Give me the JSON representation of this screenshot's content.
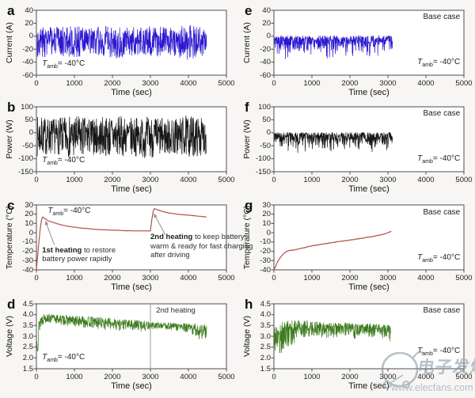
{
  "figure": {
    "background": "#f7f6f4",
    "watermark": {
      "site_name": "电子发烧友",
      "site_url": "www.elecfans.com",
      "color": "#7d929c"
    }
  },
  "chart_data": [
    {
      "panel": "a",
      "row": 0,
      "col": 0,
      "type": "line",
      "xlabel": "Time (sec)",
      "ylabel": "Current (A)",
      "xlim": [
        0,
        5000
      ],
      "ylim": [
        -60,
        40
      ],
      "xticks": [
        0,
        1000,
        2000,
        3000,
        4000,
        5000
      ],
      "xtick_labels": [
        "0",
        "1000",
        "2000",
        "3000",
        "4000",
        "5000"
      ],
      "yticks": [
        40,
        20,
        0,
        -20,
        -40,
        -60
      ],
      "ytick_labels": [
        "40",
        "20",
        "0",
        "-20",
        "-40",
        "-60"
      ],
      "color": "#2a17d0",
      "series": {
        "kind": "noise",
        "seed": 3,
        "t_start": 20,
        "t_end": 4480,
        "dt": 6,
        "skew": 1,
        "envelope": {
          "t": [
            0,
            500,
            1000,
            1500,
            2000,
            2500,
            3000,
            3500,
            4000,
            4480
          ],
          "upper": [
            18,
            14,
            16,
            14,
            17,
            14,
            16,
            14,
            18,
            13
          ],
          "lower": [
            -34,
            -29,
            -33,
            -29,
            -36,
            -30,
            -33,
            -29,
            -37,
            -29
          ]
        }
      },
      "annotations": [
        {
          "name": "tamb-label",
          "cls": "tamb",
          "fx": 0.03,
          "fy": 0.76,
          "align": "left",
          "parts": {
            "pre": "T",
            "sub": "amb",
            "post": "= -40°C"
          }
        }
      ]
    },
    {
      "panel": "b",
      "row": 1,
      "col": 0,
      "type": "line",
      "xlabel": "Time (sec)",
      "ylabel": "Power (W)",
      "xlim": [
        0,
        5000
      ],
      "ylim": [
        -150,
        100
      ],
      "xticks": [
        0,
        1000,
        2000,
        3000,
        4000,
        5000
      ],
      "xtick_labels": [
        "0",
        "1000",
        "2000",
        "3000",
        "4000",
        "5000"
      ],
      "yticks": [
        100,
        50,
        0,
        -50,
        -100,
        -150
      ],
      "ytick_labels": [
        "100",
        "50",
        "0",
        "-50",
        "-100",
        "-150"
      ],
      "color": "#161616",
      "series": {
        "kind": "noise",
        "seed": 7,
        "t_start": 20,
        "t_end": 4480,
        "dt": 6,
        "skew": 1,
        "envelope": {
          "t": [
            0,
            500,
            1000,
            1500,
            2000,
            2500,
            3000,
            3500,
            4000,
            4480
          ],
          "upper": [
            65,
            55,
            68,
            55,
            70,
            58,
            65,
            55,
            68,
            55
          ],
          "lower": [
            -92,
            -82,
            -100,
            -85,
            -96,
            -88,
            -100,
            -85,
            -96,
            -85
          ]
        }
      },
      "annotations": [
        {
          "name": "tamb-label",
          "cls": "tamb",
          "fx": 0.03,
          "fy": 0.76,
          "align": "left",
          "parts": {
            "pre": "T",
            "sub": "amb",
            "post": "= -40°C"
          }
        }
      ]
    },
    {
      "panel": "c",
      "row": 2,
      "col": 0,
      "type": "line",
      "xlabel": "Time (sec)",
      "ylabel": "Temperature (°C)",
      "xlim": [
        0,
        5000
      ],
      "ylim": [
        -40,
        30
      ],
      "xticks": [
        0,
        1000,
        2000,
        3000,
        4000,
        5000
      ],
      "xtick_labels": [
        "0",
        "1000",
        "2000",
        "3000",
        "4000",
        "5000"
      ],
      "yticks": [
        30,
        20,
        10,
        0,
        -10,
        -20,
        -30,
        -40
      ],
      "ytick_labels": [
        "30",
        "20",
        "10",
        "0",
        "-10",
        "-20",
        "-30",
        "-40"
      ],
      "color": "#b0524c",
      "series": {
        "kind": "points",
        "wiggle": 0.25,
        "points": [
          [
            0,
            -40
          ],
          [
            30,
            -26
          ],
          [
            60,
            -12
          ],
          [
            100,
            4
          ],
          [
            130,
            13
          ],
          [
            160,
            17
          ],
          [
            200,
            16
          ],
          [
            300,
            13
          ],
          [
            450,
            11
          ],
          [
            650,
            8.5
          ],
          [
            900,
            6.5
          ],
          [
            1200,
            5
          ],
          [
            1600,
            3.5
          ],
          [
            2000,
            2.8
          ],
          [
            2400,
            2.2
          ],
          [
            2800,
            2
          ],
          [
            3000,
            2
          ],
          [
            3030,
            12
          ],
          [
            3070,
            23
          ],
          [
            3100,
            26
          ],
          [
            3200,
            24.5
          ],
          [
            3400,
            22
          ],
          [
            3700,
            20
          ],
          [
            4000,
            19
          ],
          [
            4250,
            18
          ],
          [
            4480,
            17
          ]
        ]
      },
      "arrows": [
        {
          "from": [
            470,
            -13
          ],
          "to": [
            235,
            13
          ]
        },
        {
          "from": [
            3390,
            -2
          ],
          "to": [
            3085,
            21
          ]
        }
      ],
      "annotations": [
        {
          "name": "tamb-label",
          "cls": "tamb",
          "fx": 0.06,
          "fy": 0.02,
          "align": "left",
          "parts": {
            "pre": "T",
            "sub": "amb",
            "post": "= -40°C"
          }
        },
        {
          "name": "first-heating-note",
          "fx": 0.03,
          "fy": 0.63,
          "w": 122,
          "align": "left",
          "parts": {
            "bold": "1st heating",
            "rest": " to restore battery power rapidly"
          }
        },
        {
          "name": "second-heating-note",
          "fx": 0.6,
          "fy": 0.43,
          "w": 130,
          "align": "left",
          "parts": {
            "bold": "2nd heating",
            "rest": " to keep battery warm & ready for fast charging after driving"
          }
        }
      ]
    },
    {
      "panel": "d",
      "row": 3,
      "col": 0,
      "type": "line",
      "xlabel": "Time (sec)",
      "ylabel": "Voltage (V)",
      "xlim": [
        0,
        5000
      ],
      "ylim": [
        1.5,
        4.5
      ],
      "xticks": [
        0,
        1000,
        2000,
        3000,
        4000,
        5000
      ],
      "xtick_labels": [
        "0",
        "1000",
        "2000",
        "3000",
        "4000",
        "5000"
      ],
      "yticks": [
        4.5,
        4.0,
        3.5,
        3.0,
        2.5,
        2.0,
        1.5
      ],
      "ytick_labels": [
        "4.5",
        "4.0",
        "3.5",
        "3.0",
        "2.5",
        "2.0",
        "1.5"
      ],
      "color": "#3e7c1e",
      "vline": {
        "x": 3000,
        "color": "#9a9a9a"
      },
      "series": {
        "kind": "noise",
        "seed": 13,
        "t_start": 10,
        "t_end": 4480,
        "dt": 6,
        "skew": 0.7,
        "envelope": {
          "t": [
            0,
            40,
            100,
            200,
            600,
            1000,
            1600,
            2200,
            2800,
            3000,
            3400,
            3900,
            4200,
            4480
          ],
          "upper": [
            3.0,
            3.6,
            4.05,
            4.05,
            4.0,
            3.95,
            3.9,
            3.8,
            3.75,
            3.65,
            3.65,
            3.6,
            3.6,
            3.55
          ],
          "lower": [
            1.9,
            2.3,
            3.2,
            3.6,
            3.5,
            3.4,
            3.3,
            3.25,
            3.2,
            3.3,
            3.3,
            3.15,
            2.85,
            2.8
          ]
        }
      },
      "annotations": [
        {
          "name": "tamb-label",
          "cls": "tamb",
          "fx": 0.03,
          "fy": 0.76,
          "align": "left",
          "parts": {
            "pre": "T",
            "sub": "amb",
            "post": "= -40°C"
          }
        },
        {
          "name": "second-heating-label",
          "fx": 0.63,
          "fy": 0.04,
          "align": "left",
          "parts": {
            "text": "2nd heating"
          }
        }
      ]
    },
    {
      "panel": "e",
      "row": 0,
      "col": 1,
      "type": "line",
      "xlabel": "Time (sec)",
      "ylabel": "Current (A)",
      "xlim": [
        0,
        5000
      ],
      "ylim": [
        -60,
        40
      ],
      "xticks": [
        0,
        1000,
        2000,
        3000,
        4000,
        5000
      ],
      "xtick_labels": [
        "0",
        "1000",
        "2000",
        "3000",
        "4000",
        "5000"
      ],
      "yticks": [
        40,
        20,
        0,
        -20,
        -40,
        -60
      ],
      "ytick_labels": [
        "40",
        "20",
        "0",
        "-20",
        "-40",
        "-60"
      ],
      "color": "#2a17d0",
      "series": {
        "kind": "noise",
        "seed": 5,
        "t_start": 10,
        "t_end": 3120,
        "dt": 6,
        "skew": 0.32,
        "envelope": {
          "t": [
            0,
            300,
            600,
            1000,
            1500,
            2000,
            2500,
            3120
          ],
          "upper": [
            1,
            1,
            1,
            1,
            1,
            1,
            1,
            1
          ],
          "lower": [
            -32,
            -45,
            -38,
            -34,
            -40,
            -36,
            -42,
            -34
          ]
        }
      },
      "annotations": [
        {
          "name": "base-case-label",
          "cls": "base",
          "fx": 0.98,
          "fy": 0.04,
          "align": "right",
          "parts": {
            "text": "Base case"
          }
        },
        {
          "name": "tamb-label",
          "cls": "tamb",
          "fx": 0.98,
          "fy": 0.73,
          "align": "right",
          "parts": {
            "pre": "T",
            "sub": "amb",
            "post": "= -40°C"
          }
        }
      ]
    },
    {
      "panel": "f",
      "row": 1,
      "col": 1,
      "type": "line",
      "xlabel": "Time (sec)",
      "ylabel": "Power (W)",
      "xlim": [
        0,
        5000
      ],
      "ylim": [
        -150,
        100
      ],
      "xticks": [
        0,
        1000,
        2000,
        3000,
        4000,
        5000
      ],
      "xtick_labels": [
        "0",
        "1000",
        "2000",
        "3000",
        "4000",
        "5000"
      ],
      "yticks": [
        100,
        50,
        0,
        -50,
        -100,
        -150
      ],
      "ytick_labels": [
        "100",
        "50",
        "0",
        "-50",
        "-100",
        "-150"
      ],
      "color": "#161616",
      "series": {
        "kind": "noise",
        "seed": 9,
        "t_start": 10,
        "t_end": 3120,
        "dt": 6,
        "skew": 0.32,
        "envelope": {
          "t": [
            0,
            300,
            600,
            1000,
            1500,
            2000,
            2500,
            3120
          ],
          "upper": [
            2,
            2,
            2,
            2,
            2,
            2,
            2,
            2
          ],
          "lower": [
            -70,
            -102,
            -92,
            -88,
            -100,
            -90,
            -102,
            -92
          ]
        }
      },
      "annotations": [
        {
          "name": "base-case-label",
          "cls": "base",
          "fx": 0.98,
          "fy": 0.04,
          "align": "right",
          "parts": {
            "text": "Base case"
          }
        },
        {
          "name": "tamb-label",
          "cls": "tamb",
          "fx": 0.98,
          "fy": 0.73,
          "align": "right",
          "parts": {
            "pre": "T",
            "sub": "amb",
            "post": "= -40°C"
          }
        }
      ]
    },
    {
      "panel": "g",
      "row": 2,
      "col": 1,
      "type": "line",
      "xlabel": "Time (sec)",
      "ylabel": "Temperature (°C)",
      "xlim": [
        0,
        5000
      ],
      "ylim": [
        -40,
        30
      ],
      "xticks": [
        0,
        1000,
        2000,
        3000,
        4000,
        5000
      ],
      "xtick_labels": [
        "0",
        "1000",
        "2000",
        "3000",
        "4000",
        "5000"
      ],
      "yticks": [
        30,
        20,
        10,
        0,
        -10,
        -20,
        -30,
        -40
      ],
      "ytick_labels": [
        "30",
        "20",
        "10",
        "0",
        "-10",
        "-20",
        "-30",
        "-40"
      ],
      "color": "#b0524c",
      "series": {
        "kind": "points",
        "wiggle": 0.5,
        "points": [
          [
            0,
            -40
          ],
          [
            50,
            -36
          ],
          [
            100,
            -31
          ],
          [
            200,
            -25
          ],
          [
            300,
            -21
          ],
          [
            400,
            -19
          ],
          [
            550,
            -18.5
          ],
          [
            700,
            -17
          ],
          [
            900,
            -15
          ],
          [
            1100,
            -13.5
          ],
          [
            1400,
            -11.5
          ],
          [
            1700,
            -9.5
          ],
          [
            2000,
            -8
          ],
          [
            2300,
            -6
          ],
          [
            2600,
            -4
          ],
          [
            2900,
            -1.5
          ],
          [
            3100,
            1.5
          ]
        ]
      },
      "annotations": [
        {
          "name": "base-case-label",
          "cls": "base",
          "fx": 0.98,
          "fy": 0.05,
          "align": "right",
          "parts": {
            "text": "Base case"
          }
        },
        {
          "name": "tamb-label",
          "cls": "tamb",
          "fx": 0.98,
          "fy": 0.74,
          "align": "right",
          "parts": {
            "pre": "T",
            "sub": "amb",
            "post": "= -40°C"
          }
        }
      ]
    },
    {
      "panel": "h",
      "row": 3,
      "col": 1,
      "type": "line",
      "xlabel": "Time (sec)",
      "ylabel": "Voltage (V)",
      "xlim": [
        0,
        5000
      ],
      "ylim": [
        1.5,
        4.5
      ],
      "xticks": [
        0,
        1000,
        2000,
        3000,
        4000,
        5000
      ],
      "xtick_labels": [
        "0",
        "1000",
        "2000",
        "3000",
        "4000",
        "5000"
      ],
      "yticks": [
        4.5,
        4.0,
        3.5,
        3.0,
        2.5,
        2.0,
        1.5
      ],
      "ytick_labels": [
        "4.5",
        "4.0",
        "3.5",
        "3.0",
        "2.5",
        "2.0",
        "1.5"
      ],
      "color": "#3e7c1e",
      "series": {
        "kind": "noise",
        "seed": 17,
        "t_start": 10,
        "t_end": 3080,
        "dt": 6,
        "skew": 0.65,
        "envelope": {
          "t": [
            0,
            100,
            200,
            400,
            700,
            1200,
            1800,
            2400,
            2900,
            3080
          ],
          "upper": [
            3.8,
            3.6,
            3.7,
            3.78,
            3.78,
            3.68,
            3.62,
            3.6,
            3.55,
            3.5
          ],
          "lower": [
            2.0,
            1.9,
            2.0,
            2.3,
            2.9,
            2.9,
            2.85,
            2.9,
            2.8,
            2.7
          ]
        }
      },
      "annotations": [
        {
          "name": "base-case-label",
          "cls": "base",
          "fx": 0.98,
          "fy": 0.04,
          "align": "right",
          "parts": {
            "text": "Base case"
          }
        },
        {
          "name": "tamb-label",
          "cls": "tamb",
          "fx": 0.98,
          "fy": 0.66,
          "align": "right",
          "parts": {
            "pre": "T",
            "sub": "amb",
            "post": "= -40°C"
          }
        }
      ]
    }
  ]
}
